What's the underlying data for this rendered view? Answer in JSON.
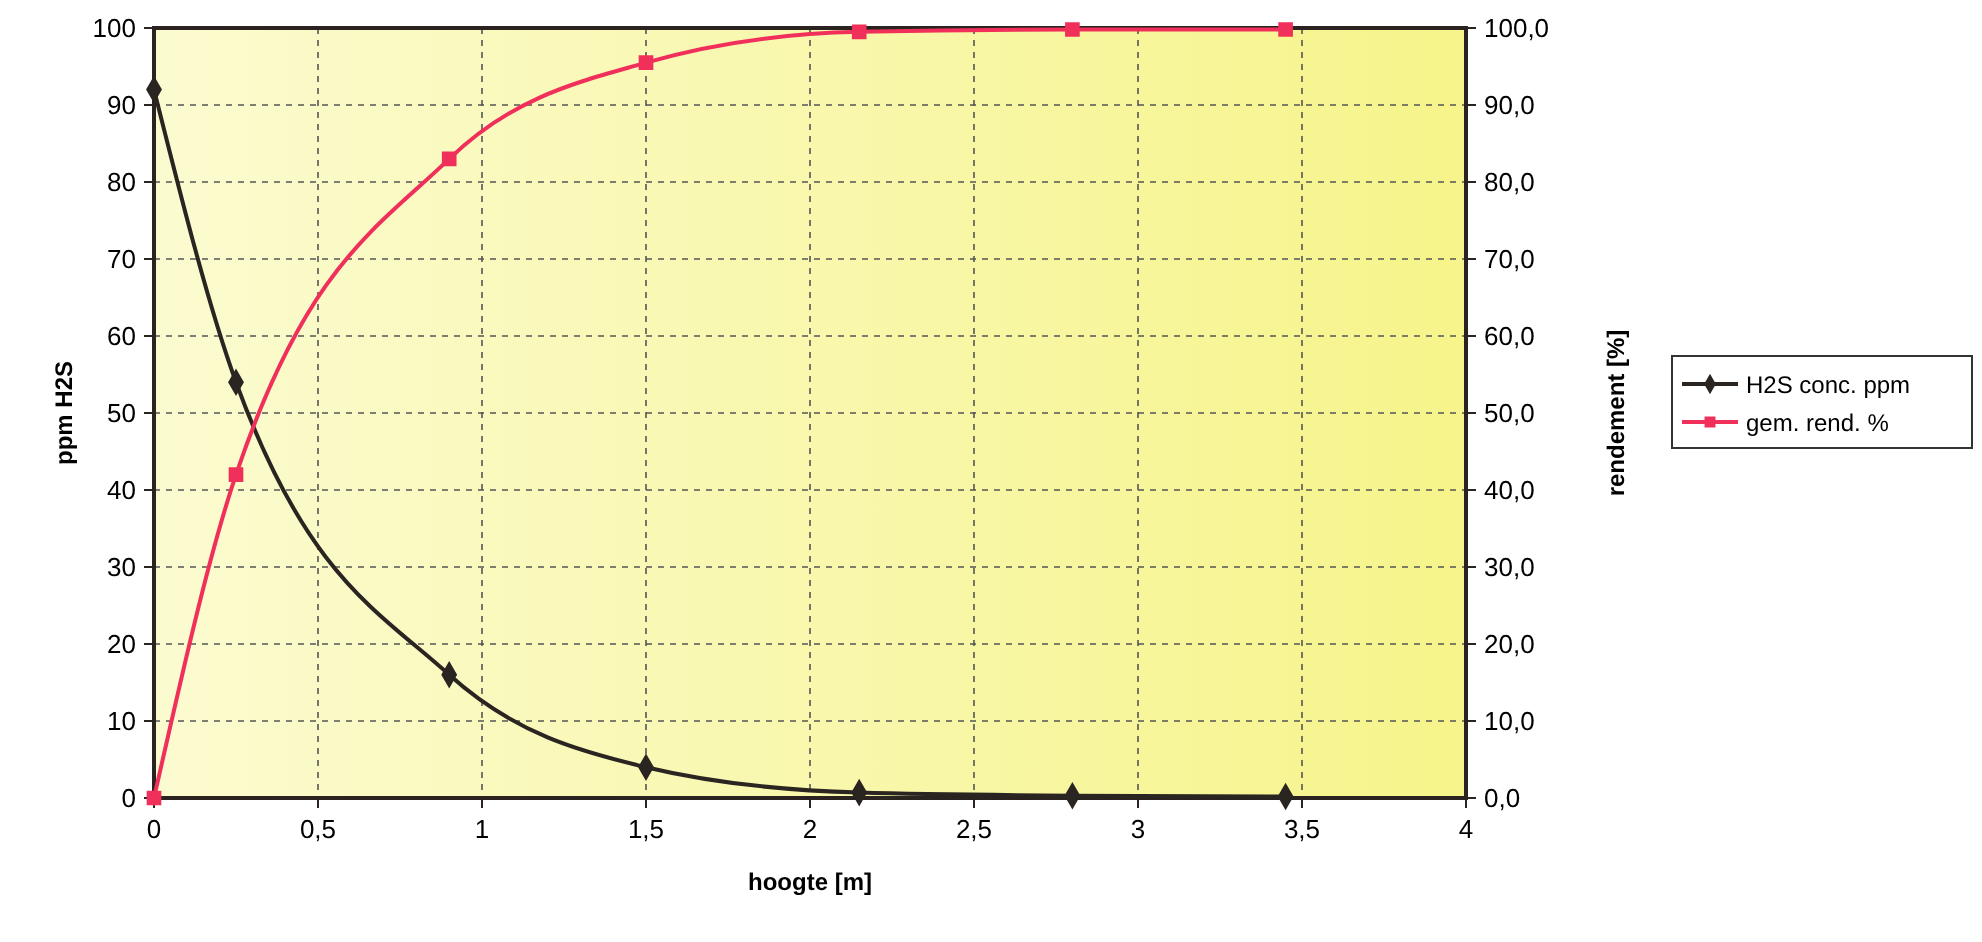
{
  "chart_data": {
    "type": "line",
    "xlabel": "hoogte [m]",
    "ylabel": "ppm H2S",
    "y2label": "rendement [%]",
    "xlim": [
      0,
      4
    ],
    "xticks": [
      0,
      {
        "value": 0.5,
        "label": "0,5"
      },
      1,
      {
        "value": 1.5,
        "label": "1,5"
      },
      2,
      {
        "value": 2.5,
        "label": "2,5"
      },
      3,
      {
        "value": 3.5,
        "label": "3,5"
      },
      4
    ],
    "ylim": [
      0,
      100
    ],
    "yticks": [
      0,
      10,
      20,
      30,
      40,
      50,
      60,
      70,
      80,
      90,
      100
    ],
    "y2lim": [
      0,
      100
    ],
    "y2ticks": [
      {
        "value": 0,
        "label": "0,0"
      },
      {
        "value": 10,
        "label": "10,0"
      },
      {
        "value": 20,
        "label": "20,0"
      },
      {
        "value": 30,
        "label": "30,0"
      },
      {
        "value": 40,
        "label": "40,0"
      },
      {
        "value": 50,
        "label": "50,0"
      },
      {
        "value": 60,
        "label": "60,0"
      },
      {
        "value": 70,
        "label": "70,0"
      },
      {
        "value": 80,
        "label": "80,0"
      },
      {
        "value": 90,
        "label": "90,0"
      },
      {
        "value": 100,
        "label": "100,0"
      }
    ],
    "grid": true,
    "legend": "right",
    "line_style": "solid",
    "series": [
      {
        "name": "H2S conc. ppm",
        "color": "#2b2522",
        "marker": "diamond",
        "x": [
          0,
          0.25,
          0.9,
          1.5,
          2.15,
          2.8,
          3.45
        ],
        "values": [
          92,
          54,
          16,
          4,
          0.7,
          0.3,
          0.2
        ]
      },
      {
        "name": "gem. rend. %",
        "color": "#f0305a",
        "marker": "square",
        "axis": "y2",
        "x": [
          0,
          0.25,
          0.9,
          1.5,
          2.15,
          2.8,
          3.45
        ],
        "values": [
          0,
          42,
          83,
          95.5,
          99.5,
          99.8,
          99.8
        ]
      }
    ]
  }
}
